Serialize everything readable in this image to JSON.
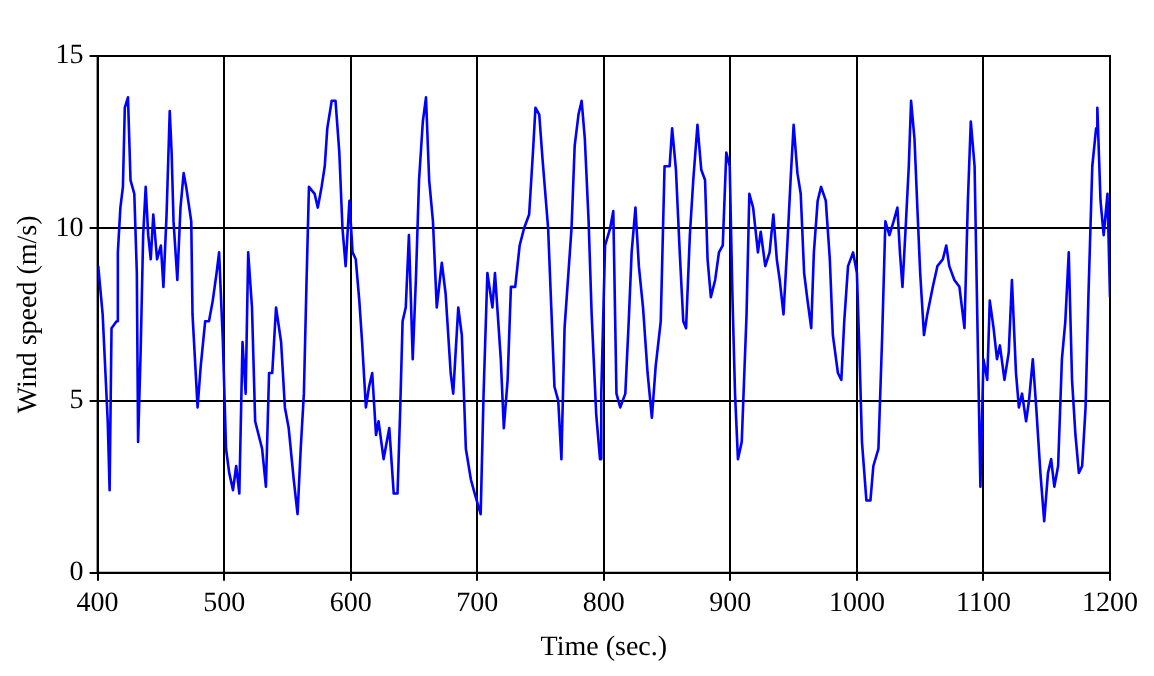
{
  "chart_data": {
    "type": "line",
    "xlabel": "Time (sec.)",
    "ylabel": "Wind speed (m/s)",
    "xlim": [
      400,
      1200
    ],
    "ylim": [
      0,
      15
    ],
    "xticks": [
      400,
      500,
      600,
      700,
      800,
      900,
      1000,
      1100,
      1200
    ],
    "yticks": [
      0,
      5,
      10,
      15
    ],
    "grid": true,
    "legend": false,
    "marker": "none",
    "line_style": "solid",
    "series": [
      {
        "color": "#0000ff",
        "x": [
          400.5,
          404,
          408,
          409.5,
          411,
          415,
          416,
          418,
          420,
          421.5,
          424,
          426,
          429,
          431,
          432,
          434,
          436,
          438,
          440,
          442,
          444,
          447,
          450,
          452,
          454.5,
          457,
          458.5,
          460,
          463,
          465.5,
          468,
          470,
          474,
          475,
          479,
          481.5,
          485,
          488,
          491,
          494,
          496,
          499,
          501.5,
          504,
          507,
          509.5,
          512,
          514.5,
          517,
          519,
          522,
          524.5,
          530,
          533,
          535.5,
          538,
          541,
          545,
          548,
          551,
          555,
          558,
          560.5,
          563,
          565,
          567,
          571.5,
          574,
          577,
          579.5,
          581.5,
          585,
          588,
          591,
          593.5,
          596,
          599,
          601.5,
          604,
          606.8,
          609,
          612,
          614.5,
          617,
          620,
          622,
          626,
          630.5,
          634,
          637,
          639,
          641,
          643.5,
          646,
          649,
          651.5,
          654,
          657,
          659.5,
          662,
          665,
          668,
          672,
          675,
          679,
          681,
          685,
          687.8,
          691,
          695,
          698,
          702.7,
          705,
          708,
          712,
          714,
          718.6,
          721,
          724,
          726.6,
          730,
          733.5,
          737,
          741,
          744,
          746,
          749,
          751.6,
          756,
          758.5,
          761,
          764,
          766.5,
          769,
          774.5,
          777,
          780,
          782.5,
          785,
          788,
          790.4,
          794,
          797,
          798,
          801,
          805,
          807.5,
          810,
          813,
          817,
          819.7,
          822,
          825,
          827.7,
          831,
          834.6,
          838,
          841,
          845,
          848,
          852,
          854,
          857,
          860,
          862.8,
          865,
          868,
          870.7,
          874,
          877,
          880,
          882,
          884.6,
          888,
          891,
          894,
          896.8,
          899.5,
          901.6,
          903.7,
          906,
          909,
          912.8,
          915,
          918,
          921.8,
          924,
          927.6,
          931,
          934,
          936.7,
          939,
          942,
          945,
          947.6,
          950,
          953,
          955.6,
          958.3,
          961,
          963.9,
          966,
          969,
          971.7,
          975.4,
          978.6,
          981,
          985,
          987.7,
          990,
          993,
          997,
          1000,
          1002,
          1004,
          1007.5,
          1010.7,
          1013,
          1017,
          1020,
          1022.5,
          1025.7,
          1029,
          1032,
          1034,
          1036,
          1038.5,
          1041,
          1042.8,
          1045.5,
          1048,
          1050,
          1053,
          1055.6,
          1060,
          1063.6,
          1067.9,
          1070.6,
          1073,
          1077,
          1081,
          1085,
          1087.7,
          1090,
          1093,
          1095,
          1097.6,
          1100,
          1103,
          1105,
          1108,
          1110.7,
          1113,
          1116.6,
          1120,
          1122.5,
          1125.7,
          1128,
          1130.5,
          1133.7,
          1136,
          1139,
          1141.7,
          1145,
          1148,
          1151,
          1153.5,
          1156,
          1159,
          1162,
          1164.7,
          1167.4,
          1170,
          1172.7,
          1175.4,
          1178,
          1180.7,
          1183,
          1186,
          1189,
          1190,
          1192.5,
          1195,
          1198,
          1200
        ],
        "values": [
          8.9,
          7.5,
          4.4,
          2.4,
          7.1,
          7.3,
          9.3,
          10.6,
          11.2,
          13.5,
          13.8,
          11.4,
          11,
          8.7,
          3.8,
          6.4,
          9.8,
          11.2,
          9.8,
          9.1,
          10.4,
          9.1,
          9.5,
          8.3,
          10.4,
          13.4,
          12.2,
          10.2,
          8.5,
          10.6,
          11.6,
          11.2,
          10.2,
          7.5,
          4.8,
          6,
          7.3,
          7.3,
          7.9,
          8.7,
          9.3,
          6.7,
          3.6,
          2.9,
          2.4,
          3.1,
          2.3,
          6.7,
          5.2,
          9.3,
          7.7,
          4.4,
          3.6,
          2.5,
          5.8,
          5.8,
          7.7,
          6.7,
          4.8,
          4.2,
          2.7,
          1.7,
          3.6,
          5.2,
          8.3,
          11.2,
          11,
          10.6,
          11.2,
          11.8,
          12.9,
          13.7,
          13.7,
          12.2,
          10,
          8.9,
          10.8,
          9.3,
          9.1,
          7.9,
          6.7,
          4.8,
          5.4,
          5.8,
          4,
          4.4,
          3.3,
          4.2,
          2.3,
          2.3,
          4.6,
          7.3,
          7.7,
          9.8,
          6.2,
          8.5,
          11.4,
          13.1,
          13.8,
          11.4,
          10.2,
          7.7,
          9,
          8.1,
          5.8,
          5.2,
          7.7,
          6.9,
          3.6,
          2.7,
          2.3,
          1.7,
          5.2,
          8.7,
          7.7,
          8.7,
          6.2,
          4.2,
          5.6,
          8.3,
          8.3,
          9.5,
          10,
          10.4,
          12.2,
          13.5,
          13.3,
          12,
          10,
          7.7,
          5.4,
          5,
          3.3,
          7.1,
          10,
          12.4,
          13.3,
          13.7,
          12.6,
          10.2,
          7.5,
          4.6,
          3.3,
          5.2,
          9.5,
          10,
          10.5,
          5.2,
          4.8,
          5.2,
          7.3,
          9.3,
          10.6,
          8.9,
          7.7,
          5.8,
          4.5,
          6,
          7.3,
          11.8,
          11.8,
          12.9,
          11.7,
          9.3,
          7.3,
          7.1,
          9.8,
          11.4,
          13,
          11.7,
          11.4,
          9.1,
          8,
          8.5,
          9.3,
          9.5,
          12.2,
          11.8,
          8.1,
          5.2,
          3.3,
          3.8,
          7.5,
          11,
          10.6,
          9.3,
          9.9,
          8.9,
          9.3,
          10.4,
          9.1,
          8.5,
          7.5,
          9.5,
          11.4,
          13,
          11.6,
          11,
          8.7,
          7.9,
          7.1,
          9.3,
          10.8,
          11.2,
          10.8,
          9.1,
          6.9,
          5.8,
          5.6,
          7.3,
          8.9,
          9.3,
          8.7,
          6.4,
          3.8,
          2.1,
          2.1,
          3.1,
          3.6,
          6.9,
          10.2,
          9.8,
          10.2,
          10.6,
          9.3,
          8.3,
          10,
          11.8,
          13.7,
          12.6,
          10.4,
          8.7,
          6.9,
          7.5,
          8.3,
          8.9,
          9.1,
          9.5,
          8.9,
          8.5,
          8.3,
          7.1,
          10.8,
          13.1,
          11.8,
          7.7,
          2.5,
          6.2,
          5.6,
          7.9,
          7.1,
          6.2,
          6.6,
          5.6,
          6.4,
          8.5,
          5.8,
          4.8,
          5.2,
          4.4,
          5,
          6.2,
          4.8,
          2.9,
          1.5,
          2.9,
          3.3,
          2.5,
          3.1,
          6.2,
          7.3,
          9.3,
          5.6,
          4,
          2.9,
          3.1,
          4.8,
          8.1,
          11.8,
          12.9,
          13.5,
          10.8,
          9.8,
          11,
          8
        ]
      }
    ]
  }
}
